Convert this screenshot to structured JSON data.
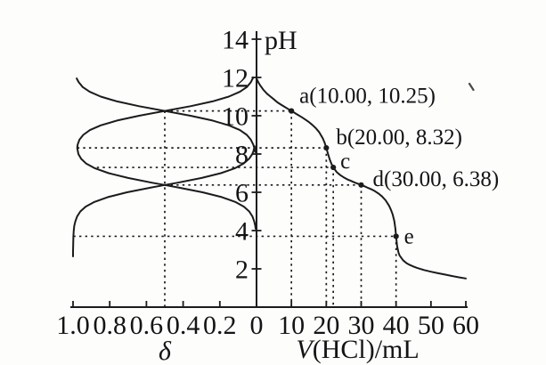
{
  "meta": {
    "ink_color": "#1b1b1b",
    "text_color": "#141414",
    "background_color": "#fdfdfc"
  },
  "chart_data": {
    "type": "line",
    "title": "",
    "layout_hint": "Shared pH y-axis; left x-axis is distribution fraction delta (1.0 to 0), right x-axis is titrant volume V(HCl)/mL (0 to 60); dotted guide lines link curves to labeled points; grid off; no legend.",
    "y_axis": {
      "label": "pH",
      "min": 0,
      "max": 14,
      "tick_values": [
        2,
        4,
        6,
        8,
        10,
        12,
        14
      ],
      "tick_labels": [
        "2",
        "4",
        "6",
        "8",
        "10",
        "12",
        "14"
      ]
    },
    "x_axis_right": {
      "label_italic": "V",
      "label_rest": "(HCl)/mL",
      "min": 0,
      "max": 60,
      "tick_values": [
        0,
        10,
        20,
        30,
        40,
        50,
        60
      ],
      "tick_labels": [
        "0",
        "10",
        "20",
        "30",
        "40",
        "50",
        "60"
      ]
    },
    "x_axis_left": {
      "label": "δ",
      "min": 0,
      "max": 1.0,
      "tick_values": [
        1.0,
        0.8,
        0.6,
        0.4,
        0.2
      ],
      "tick_labels": [
        "1.0",
        "0.8",
        "0.6",
        "0.4",
        "0.2"
      ]
    },
    "series": [
      {
        "name": "titration-curve",
        "x": "volume",
        "points": [
          [
            0,
            11.95
          ],
          [
            0.5,
            11.75
          ],
          [
            1,
            11.6
          ],
          [
            2,
            11.35
          ],
          [
            3,
            11.15
          ],
          [
            4,
            11.0
          ],
          [
            5,
            10.85
          ],
          [
            6,
            10.7
          ],
          [
            7,
            10.58
          ],
          [
            8,
            10.47
          ],
          [
            9,
            10.36
          ],
          [
            10,
            10.25
          ],
          [
            11,
            10.14
          ],
          [
            12,
            10.03
          ],
          [
            13,
            9.92
          ],
          [
            14,
            9.8
          ],
          [
            15,
            9.67
          ],
          [
            16,
            9.52
          ],
          [
            17,
            9.35
          ],
          [
            18,
            9.13
          ],
          [
            19,
            8.82
          ],
          [
            19.5,
            8.6
          ],
          [
            20,
            8.32
          ],
          [
            20.5,
            8.0
          ],
          [
            21,
            7.7
          ],
          [
            21.5,
            7.48
          ],
          [
            22,
            7.3
          ],
          [
            23,
            7.05
          ],
          [
            24,
            6.9
          ],
          [
            25,
            6.78
          ],
          [
            26,
            6.68
          ],
          [
            27,
            6.6
          ],
          [
            28,
            6.52
          ],
          [
            29,
            6.45
          ],
          [
            30,
            6.38
          ],
          [
            31,
            6.31
          ],
          [
            32,
            6.23
          ],
          [
            33,
            6.15
          ],
          [
            34,
            6.05
          ],
          [
            35,
            5.93
          ],
          [
            36,
            5.78
          ],
          [
            37,
            5.58
          ],
          [
            38,
            5.3
          ],
          [
            38.5,
            5.1
          ],
          [
            39,
            4.85
          ],
          [
            39.5,
            4.5
          ],
          [
            39.8,
            4.1
          ],
          [
            40,
            3.7
          ],
          [
            40.3,
            3.2
          ],
          [
            40.7,
            2.85
          ],
          [
            41,
            2.7
          ],
          [
            42,
            2.45
          ],
          [
            43,
            2.3
          ],
          [
            44,
            2.2
          ],
          [
            45,
            2.12
          ],
          [
            46,
            2.05
          ],
          [
            48,
            1.94
          ],
          [
            50,
            1.85
          ],
          [
            52,
            1.77
          ],
          [
            54,
            1.7
          ],
          [
            56,
            1.63
          ],
          [
            58,
            1.56
          ],
          [
            60,
            1.5
          ]
        ]
      },
      {
        "name": "distribution-curve-high-pH",
        "x": "delta",
        "points": [
          [
            0.98,
            11.95
          ],
          [
            0.969,
            11.75
          ],
          [
            0.947,
            11.5
          ],
          [
            0.909,
            11.25
          ],
          [
            0.849,
            11.0
          ],
          [
            0.76,
            10.75
          ],
          [
            0.64,
            10.5
          ],
          [
            0.5,
            10.25
          ],
          [
            0.36,
            10.0
          ],
          [
            0.24,
            9.75
          ],
          [
            0.151,
            9.5
          ],
          [
            0.091,
            9.25
          ],
          [
            0.053,
            9.0
          ],
          [
            0.031,
            8.75
          ],
          [
            0.018,
            8.5
          ],
          [
            0.01,
            8.25
          ],
          [
            0.007,
            8.1
          ]
        ]
      },
      {
        "name": "distribution-curve-mid-pH",
        "x": "delta",
        "points": [
          [
            0.018,
            12.0
          ],
          [
            0.031,
            11.75
          ],
          [
            0.053,
            11.5
          ],
          [
            0.091,
            11.25
          ],
          [
            0.151,
            11.0
          ],
          [
            0.24,
            10.75
          ],
          [
            0.36,
            10.5
          ],
          [
            0.5,
            10.25
          ],
          [
            0.64,
            10.0
          ],
          [
            0.76,
            9.75
          ],
          [
            0.849,
            9.5
          ],
          [
            0.908,
            9.25
          ],
          [
            0.944,
            9.0
          ],
          [
            0.965,
            8.75
          ],
          [
            0.975,
            8.5
          ],
          [
            0.977,
            8.315
          ],
          [
            0.971,
            8.0
          ],
          [
            0.956,
            7.75
          ],
          [
            0.928,
            7.5
          ],
          [
            0.88,
            7.25
          ],
          [
            0.806,
            7.0
          ],
          [
            0.7,
            6.75
          ],
          [
            0.568,
            6.5
          ],
          [
            0.5,
            6.38
          ],
          [
            0.426,
            6.25
          ],
          [
            0.294,
            6.0
          ],
          [
            0.19,
            5.75
          ],
          [
            0.116,
            5.5
          ],
          [
            0.069,
            5.25
          ],
          [
            0.04,
            5.0
          ],
          [
            0.023,
            4.75
          ],
          [
            0.013,
            4.5
          ],
          [
            0.007,
            4.25
          ],
          [
            0.005,
            4.1
          ]
        ]
      },
      {
        "name": "distribution-curve-low-pH",
        "x": "delta",
        "points": [
          [
            0.01,
            8.4
          ],
          [
            0.017,
            8.15
          ],
          [
            0.023,
            8.0
          ],
          [
            0.041,
            7.75
          ],
          [
            0.071,
            7.5
          ],
          [
            0.119,
            7.25
          ],
          [
            0.194,
            7.0
          ],
          [
            0.299,
            6.75
          ],
          [
            0.432,
            6.5
          ],
          [
            0.5,
            6.38
          ],
          [
            0.574,
            6.25
          ],
          [
            0.706,
            6.0
          ],
          [
            0.81,
            5.75
          ],
          [
            0.883,
            5.5
          ],
          [
            0.931,
            5.25
          ],
          [
            0.96,
            5.0
          ],
          [
            0.977,
            4.75
          ],
          [
            0.987,
            4.5
          ],
          [
            0.993,
            4.25
          ],
          [
            0.996,
            4.0
          ],
          [
            0.998,
            3.7
          ],
          [
            0.999,
            3.3
          ],
          [
            1.0,
            2.9
          ],
          [
            1.0,
            2.65
          ]
        ]
      }
    ],
    "labeled_points": [
      {
        "id": "a",
        "label": "a(10.00, 10.25)",
        "volume": 10.0,
        "ph": 10.25
      },
      {
        "id": "b",
        "label": "b(20.00, 8.32)",
        "volume": 20.0,
        "ph": 8.32
      },
      {
        "id": "c",
        "label": "c",
        "volume": 22.0,
        "ph": 7.3
      },
      {
        "id": "d",
        "label": "d(30.00, 6.38)",
        "volume": 30.0,
        "ph": 6.38
      },
      {
        "id": "e",
        "label": "e",
        "volume": 40.0,
        "ph": 3.7
      }
    ],
    "guides": {
      "horizontal": [
        {
          "ph": 10.25,
          "from_delta": 0.5,
          "to_volume": 10
        },
        {
          "ph": 8.32,
          "from_delta": 0.977,
          "to_volume": 20
        },
        {
          "ph": 7.3,
          "from_delta": 0.87,
          "to_volume": 22
        },
        {
          "ph": 6.38,
          "from_delta": 0.5,
          "to_volume": 30
        },
        {
          "ph": 3.7,
          "from_delta": 0.998,
          "to_volume": 40
        }
      ],
      "vertical": [
        {
          "delta": 0.5,
          "top_ph": 10.25
        },
        {
          "volume": 10,
          "top_ph": 10.25
        },
        {
          "volume": 20,
          "top_ph": 8.32
        },
        {
          "volume": 22,
          "top_ph": 7.3
        },
        {
          "volume": 30,
          "top_ph": 6.38
        },
        {
          "volume": 40,
          "top_ph": 3.7
        }
      ]
    }
  }
}
